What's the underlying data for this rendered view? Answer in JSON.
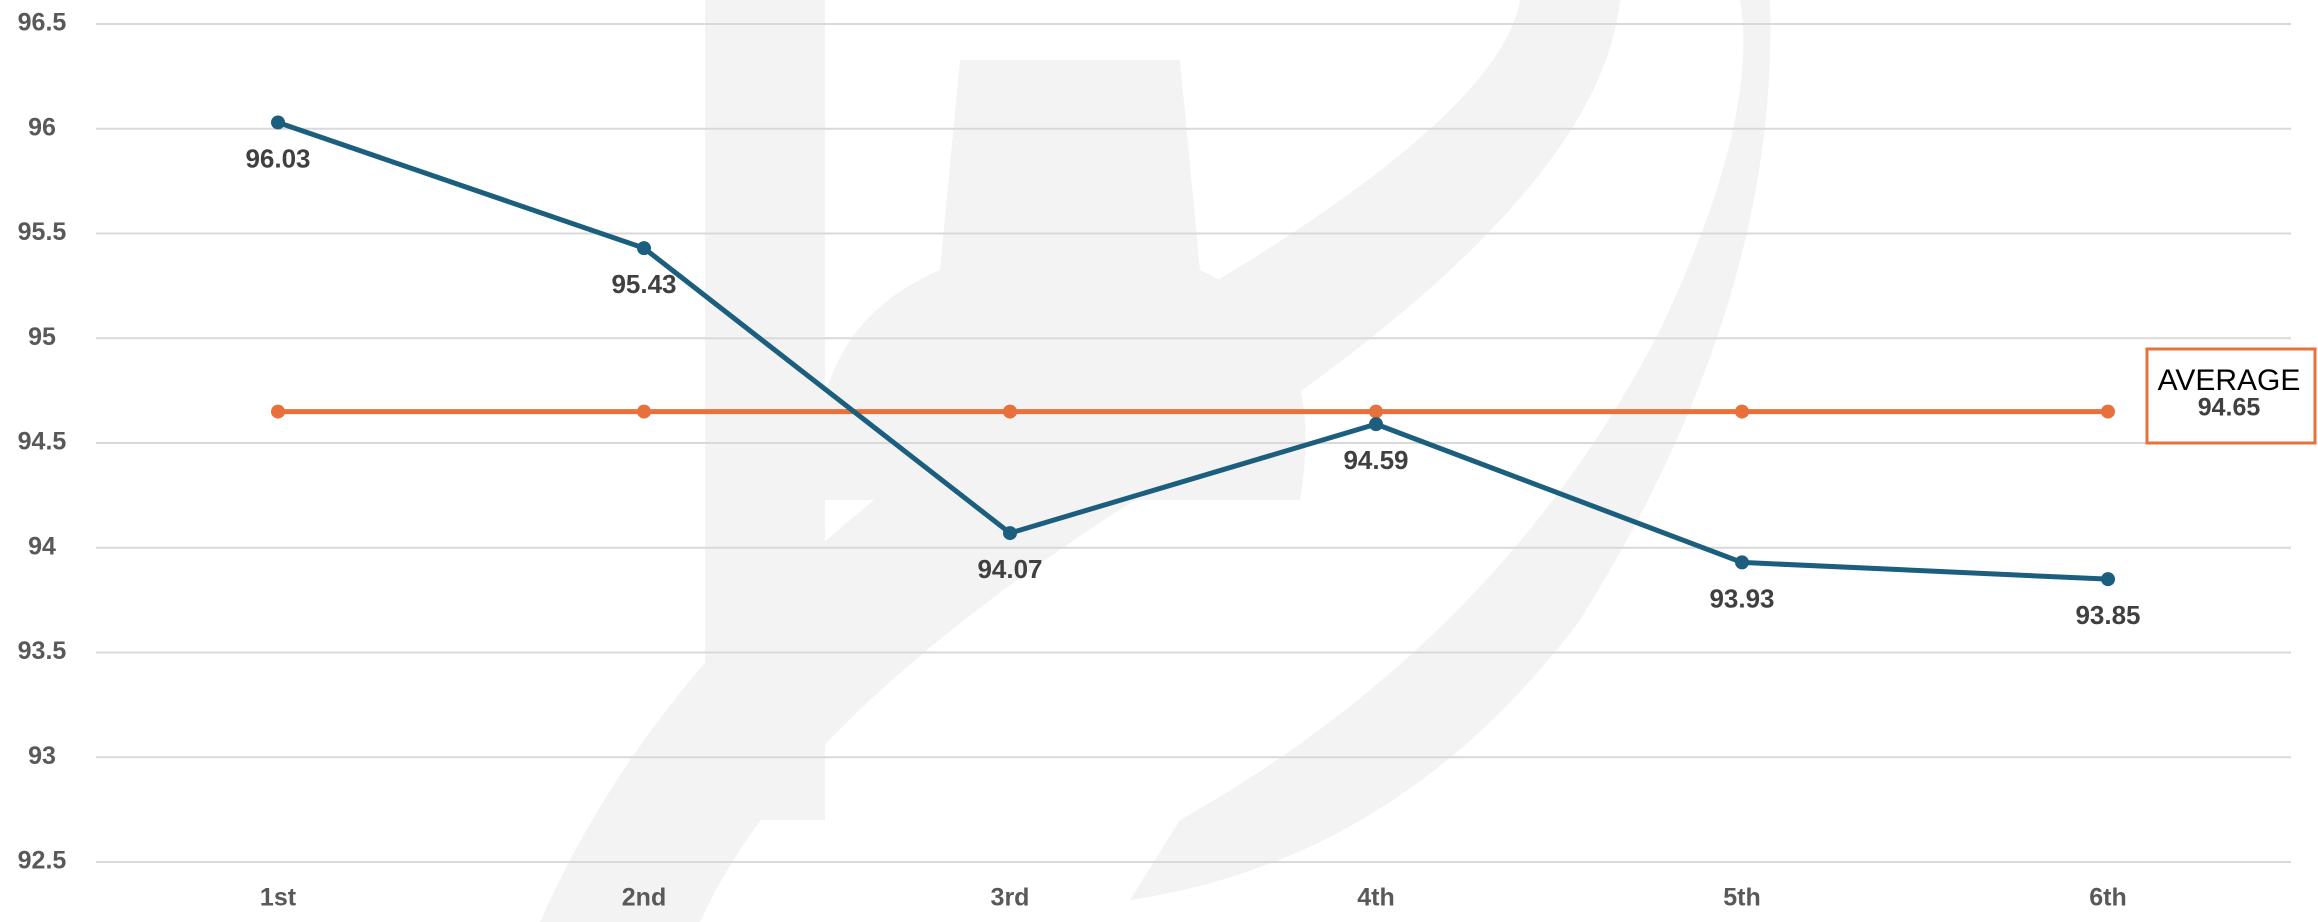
{
  "chart_data": {
    "type": "line",
    "categories": [
      "1st",
      "2nd",
      "3rd",
      "4th",
      "5th",
      "6th"
    ],
    "series": [
      {
        "color": "#1b5e7e",
        "values": [
          96.03,
          95.43,
          94.07,
          94.59,
          93.93,
          93.85
        ],
        "data_labels": true
      },
      {
        "name": "AVERAGE",
        "color": "#e8703a",
        "values": [
          94.65,
          94.65,
          94.65,
          94.65,
          94.65,
          94.65
        ],
        "data_labels": false,
        "end_callout": true
      }
    ],
    "ylim": [
      92.5,
      96.5
    ],
    "yticks": [
      92.5,
      93,
      93.5,
      94,
      94.5,
      95,
      95.5,
      96,
      96.5
    ],
    "grid": true
  }
}
